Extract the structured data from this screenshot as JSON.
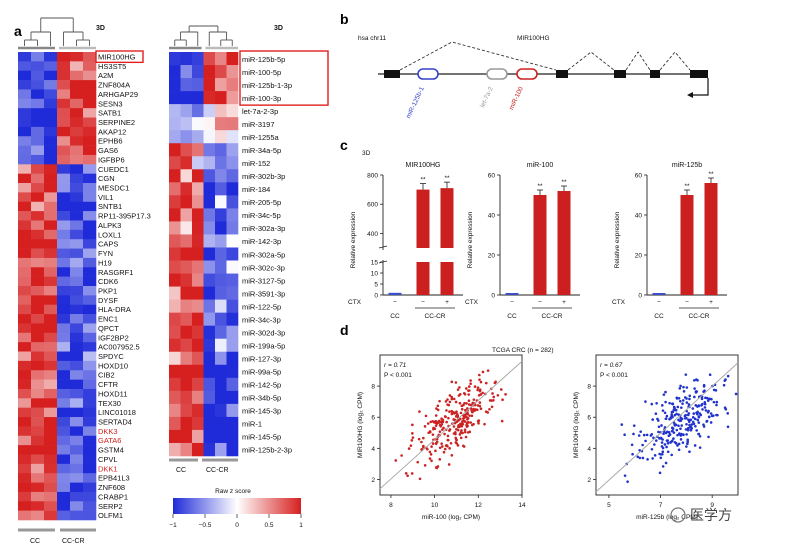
{
  "panel_a": {
    "letter": "a",
    "heatmap1_label": "3D",
    "heatmap2_label": "3D",
    "genes": [
      "MIR100HG",
      "HS3ST5",
      "A2M",
      "ZNF804A",
      "ARHGAP29",
      "SESN3",
      "SATB1",
      "SERPINE2",
      "AKAP12",
      "EPHB6",
      "GAS6",
      "IGFBP6",
      "CUEDC1",
      "CGN",
      "MESDC1",
      "VIL1",
      "SNTB1",
      "RP11-395P17.3",
      "ALPK3",
      "LOXL1",
      "CAPS",
      "FYN",
      "H19",
      "RASGRF1",
      "CDK6",
      "PKP1",
      "DYSF",
      "HLA-DRA",
      "ENC1",
      "QPCT",
      "IGF2BP2",
      "AC007952.5",
      "SPDYC",
      "HOXD10",
      "CIB2",
      "CFTR",
      "HOXD11",
      "TEX30",
      "LINC01018",
      "SERTAD4",
      "DKK3",
      "GATA6",
      "GSTM4",
      "CPVL",
      "DKK1",
      "EPB41L3",
      "ZNF608",
      "CRABP1",
      "SERP2",
      "OLFM1"
    ],
    "highlight_red_genes": [
      "DKK3",
      "GATA6",
      "DKK1"
    ],
    "boxed_gene": "MIR100HG",
    "mirnas": [
      "miR-125b-5p",
      "miR-100-5p",
      "miR-125b-1-3p",
      "miR-100-3p",
      "let-7a-2-3p",
      "miR-3197",
      "miR-1255a",
      "miR-34a-5p",
      "miR-152",
      "miR-302b-3p",
      "miR-184",
      "miR-205-5p",
      "miR-34c-5p",
      "miR-302a-3p",
      "miR-142-3p",
      "miR-302a-5p",
      "miR-302c-3p",
      "miR-3127-5p",
      "miR-3591-3p",
      "miR-122-5p",
      "miR-34c-3p",
      "miR-302d-3p",
      "miR-199a-5p",
      "miR-127-3p",
      "miR-99a-5p",
      "miR-142-5p",
      "miR-34b-5p",
      "miR-145-3p",
      "miR-1",
      "miR-145-5p",
      "miR-125b-2-3p"
    ],
    "heatmap1_groups": [
      "CC",
      "CC-CR"
    ],
    "heatmap2_groups": [
      "CC",
      "CC-CR"
    ],
    "colorbar_title": "Raw z score",
    "colorbar_ticks": [
      "−1",
      "−0.5",
      "0",
      "0.5",
      "1"
    ],
    "colors": {
      "high": "#d62728",
      "low": "#2433d6",
      "mid": "#ffffff"
    }
  },
  "panel_b": {
    "letter": "b",
    "chrom": "hsa chr11",
    "gene": "MIR100HG",
    "mirs": [
      {
        "label": "miR-125b-1",
        "color": "#3344cc"
      },
      {
        "label": "let-7a-2",
        "color": "#999999"
      },
      {
        "label": "miR-100",
        "color": "#cc2222"
      }
    ]
  },
  "panel_c": {
    "letter": "c",
    "condition": "3D",
    "ylabel": "Relative expression",
    "ctx_label": "CTX",
    "ctx_values": [
      "−",
      "−",
      "+"
    ],
    "group_cc": "CC",
    "group_cccr": "CC-CR",
    "sig": "**"
  },
  "panel_d": {
    "letter": "d",
    "title": "TCGA CRC (n = 282)",
    "left": {
      "r": "r = 0.71",
      "p": "P < 0.001",
      "xlabel": "miR-100 (log₂ CPM)",
      "ylabel": "MIR100HG (log₂ CPM)"
    },
    "right": {
      "r": "r = 0.67",
      "p": "P < 0.001",
      "xlabel": "miR-125b (log₂ CPM)",
      "ylabel": "MIR100HG (log₂ CPM)"
    }
  },
  "watermark": "医学方",
  "chart_data": [
    {
      "type": "bar",
      "title": "MIR100HG",
      "categories": [
        "CC",
        "CC-CR CTX−",
        "CC-CR CTX+"
      ],
      "values": [
        1,
        700,
        710
      ],
      "ylabel": "Relative expression",
      "ylim": [
        0,
        800
      ],
      "axis_break": [
        15,
        300
      ],
      "yticks_lower": [
        "0",
        "5",
        "10",
        "15"
      ],
      "yticks_upper": [
        "400",
        "600",
        "800"
      ],
      "significance": [
        "",
        "**",
        "**"
      ]
    },
    {
      "type": "bar",
      "title": "miR-100",
      "categories": [
        "CC",
        "CC-CR CTX−",
        "CC-CR CTX+"
      ],
      "values": [
        1,
        50,
        52
      ],
      "ylabel": "Relative expression",
      "ylim": [
        0,
        60
      ],
      "yticks": [
        "0",
        "20",
        "40",
        "60"
      ],
      "significance": [
        "",
        "**",
        "**"
      ]
    },
    {
      "type": "bar",
      "title": "miR-125b",
      "categories": [
        "CC",
        "CC-CR CTX−",
        "CC-CR CTX+"
      ],
      "values": [
        1,
        50,
        56
      ],
      "ylabel": "Relative expression",
      "ylim": [
        0,
        60
      ],
      "yticks": [
        "0",
        "20",
        "40",
        "60"
      ],
      "significance": [
        "",
        "**",
        "**"
      ]
    },
    {
      "type": "scatter",
      "title": "TCGA CRC (n = 282)",
      "xlabel": "miR-100 (log₂ CPM)",
      "ylabel": "MIR100HG (log₂ CPM)",
      "xlim": [
        7.5,
        14
      ],
      "ylim": [
        1,
        10
      ],
      "xticks": [
        "8",
        "10",
        "12",
        "14"
      ],
      "yticks": [
        "2",
        "4",
        "6",
        "8"
      ],
      "series": [
        {
          "color": "#cc2222",
          "n": 282,
          "r": 0.71,
          "x_mean": 11.0,
          "x_sd": 1.0,
          "y_mean": 5.8,
          "y_sd": 1.4
        }
      ],
      "fit_line": [
        [
          7.5,
          1.4
        ],
        [
          14,
          9.6
        ]
      ]
    },
    {
      "type": "scatter",
      "title": "",
      "xlabel": "miR-125b (log₂ CPM)",
      "ylabel": "MIR100HG (log₂ CPM)",
      "xlim": [
        4.5,
        10
      ],
      "ylim": [
        1,
        10
      ],
      "xticks": [
        "5",
        "7",
        "9"
      ],
      "yticks": [
        "2",
        "4",
        "6",
        "8"
      ],
      "series": [
        {
          "color": "#2233cc",
          "n": 282,
          "r": 0.67,
          "x_mean": 7.8,
          "x_sd": 0.9,
          "y_mean": 5.8,
          "y_sd": 1.4
        }
      ],
      "fit_line": [
        [
          4.5,
          1.2
        ],
        [
          10,
          9.5
        ]
      ]
    }
  ]
}
